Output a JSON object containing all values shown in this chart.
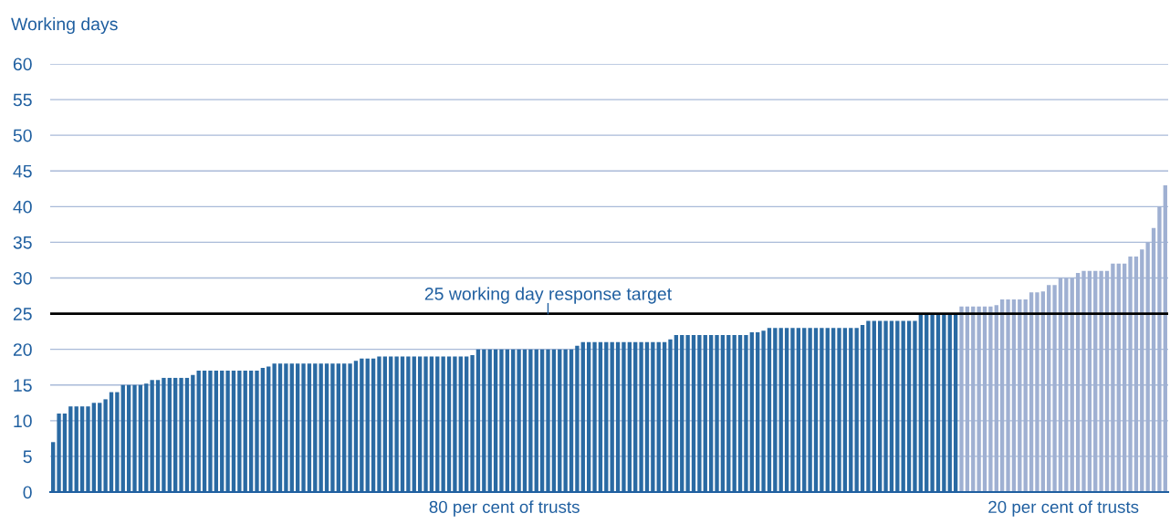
{
  "chart_data": {
    "type": "bar",
    "ylabel": "Working days",
    "categories": [
      null,
      null,
      null,
      null,
      null,
      null,
      null,
      null,
      null,
      null,
      null,
      null,
      null,
      null,
      null,
      null,
      null,
      null,
      null,
      null,
      null,
      null,
      null,
      null,
      null,
      null,
      null,
      null,
      null,
      null,
      null,
      null,
      null,
      null,
      null,
      null,
      null,
      null,
      null,
      null,
      null,
      null,
      null,
      null,
      null,
      null,
      null,
      null,
      null,
      null,
      null,
      null,
      null,
      null,
      null,
      null,
      null,
      null,
      null,
      null,
      null,
      null,
      null,
      null,
      null,
      null,
      null,
      null,
      null,
      null,
      null,
      null,
      null,
      null,
      null,
      null,
      null,
      null,
      null,
      null,
      null,
      null,
      null,
      null,
      null,
      null,
      null,
      null,
      null,
      null,
      null,
      null,
      null,
      null,
      null,
      null,
      null,
      null,
      null,
      null,
      null,
      null,
      null,
      null,
      null,
      null,
      null,
      null,
      null,
      null,
      null,
      null,
      null,
      null,
      null,
      null,
      null,
      null,
      null,
      null,
      null,
      null,
      null,
      null,
      null,
      null,
      null,
      null,
      null,
      null,
      null,
      null,
      null,
      null,
      null,
      null,
      null,
      null,
      null,
      null,
      null,
      null,
      null,
      null,
      null,
      null,
      null,
      null,
      null,
      null,
      null,
      null,
      null,
      null,
      null,
      null,
      null,
      null,
      null,
      null,
      null,
      null,
      null,
      null,
      null,
      null,
      null,
      null,
      null,
      null,
      null,
      null,
      null,
      null,
      null,
      null,
      null,
      null,
      null,
      null,
      null,
      null,
      null,
      null,
      null,
      null,
      null,
      null,
      null,
      null,
      null,
      null
    ],
    "series": [
      {
        "color": "#2a6aa3",
        "values": [
          7,
          11,
          11,
          12,
          12,
          12,
          12,
          12.5,
          12.5,
          13,
          14,
          14,
          15,
          15,
          15,
          15,
          15.2,
          15.7,
          15.7,
          16,
          16,
          16,
          16,
          16,
          16.4,
          17,
          17,
          17,
          17,
          17,
          17,
          17,
          17,
          17,
          17,
          17,
          17.4,
          17.6,
          18,
          18,
          18,
          18,
          18,
          18,
          18,
          18,
          18,
          18,
          18,
          18,
          18,
          18,
          18.4,
          18.7,
          18.7,
          18.7,
          19,
          19,
          19,
          19,
          19,
          19,
          19,
          19,
          19,
          19,
          19,
          19,
          19,
          19,
          19,
          19,
          19.2,
          20,
          20,
          20,
          20,
          20,
          20,
          20,
          20,
          20,
          20,
          20,
          20,
          20,
          20,
          20,
          20,
          20,
          20.5,
          21,
          21,
          21,
          21,
          21,
          21,
          21,
          21,
          21,
          21,
          21,
          21,
          21,
          21,
          21,
          21.4,
          22,
          22,
          22,
          22,
          22,
          22,
          22,
          22,
          22,
          22,
          22,
          22,
          22,
          22.4,
          22.4,
          22.6,
          23,
          23,
          23,
          23,
          23,
          23,
          23,
          23,
          23,
          23,
          23,
          23,
          23,
          23,
          23,
          23,
          23.4,
          24,
          24,
          24,
          24,
          24,
          24,
          24,
          24,
          24,
          25,
          25,
          25,
          25,
          25,
          25,
          25,
          null,
          null,
          null,
          null,
          null,
          null,
          null,
          null,
          null,
          null,
          null,
          null,
          null,
          null,
          null,
          null,
          null,
          null,
          null,
          null,
          null,
          null,
          null,
          null,
          null,
          null,
          null,
          null,
          null,
          null,
          null,
          null,
          null,
          null,
          null,
          null
        ]
      },
      {
        "color": "#9fb0d2",
        "values": [
          null,
          null,
          null,
          null,
          null,
          null,
          null,
          null,
          null,
          null,
          null,
          null,
          null,
          null,
          null,
          null,
          null,
          null,
          null,
          null,
          null,
          null,
          null,
          null,
          null,
          null,
          null,
          null,
          null,
          null,
          null,
          null,
          null,
          null,
          null,
          null,
          null,
          null,
          null,
          null,
          null,
          null,
          null,
          null,
          null,
          null,
          null,
          null,
          null,
          null,
          null,
          null,
          null,
          null,
          null,
          null,
          null,
          null,
          null,
          null,
          null,
          null,
          null,
          null,
          null,
          null,
          null,
          null,
          null,
          null,
          null,
          null,
          null,
          null,
          null,
          null,
          null,
          null,
          null,
          null,
          null,
          null,
          null,
          null,
          null,
          null,
          null,
          null,
          null,
          null,
          null,
          null,
          null,
          null,
          null,
          null,
          null,
          null,
          null,
          null,
          null,
          null,
          null,
          null,
          null,
          null,
          null,
          null,
          null,
          null,
          null,
          null,
          null,
          null,
          null,
          null,
          null,
          null,
          null,
          null,
          null,
          null,
          null,
          null,
          null,
          null,
          null,
          null,
          null,
          null,
          null,
          null,
          null,
          null,
          null,
          null,
          null,
          null,
          null,
          null,
          null,
          null,
          null,
          null,
          null,
          null,
          null,
          null,
          null,
          null,
          null,
          null,
          null,
          null,
          null,
          null,
          26,
          26,
          26,
          26,
          26,
          26,
          26.2,
          27,
          27,
          27,
          27,
          27,
          28,
          28,
          28.1,
          29,
          29,
          30,
          30,
          30,
          30.7,
          31,
          31,
          31,
          31,
          31,
          32,
          32,
          32,
          33,
          33,
          34,
          35,
          37,
          40,
          43
        ]
      }
    ],
    "ylim": [
      0,
      60
    ],
    "yticks": [
      0,
      5,
      10,
      15,
      20,
      25,
      30,
      35,
      40,
      45,
      50,
      55,
      60
    ],
    "grid": "y",
    "ref_lines": [
      {
        "axis": "y",
        "value": 25,
        "label": "25 working day response target",
        "color": "#000000"
      }
    ],
    "annotations": [
      "80 per cent of trusts",
      "20 per cent of trusts"
    ]
  }
}
